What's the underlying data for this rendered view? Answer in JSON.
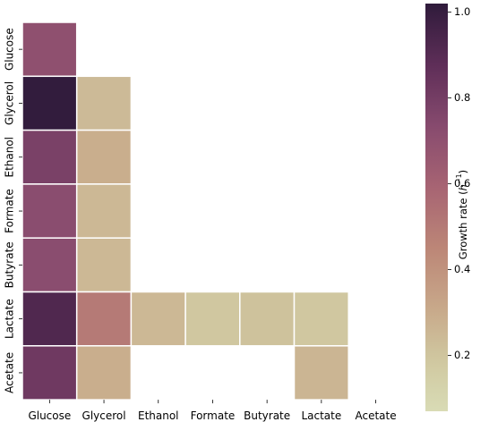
{
  "chart_data": {
    "type": "heatmap",
    "title": "",
    "xlabel": "",
    "ylabel": "",
    "x_categories": [
      "Glucose",
      "Glycerol",
      "Ethanol",
      "Formate",
      "Butyrate",
      "Lactate",
      "Acetate"
    ],
    "y_categories": [
      "Glucose",
      "Glycerol",
      "Ethanol",
      "Formate",
      "Butyrate",
      "Lactate",
      "Acetate"
    ],
    "values": [
      [
        0.7,
        null,
        null,
        null,
        null,
        null,
        null
      ],
      [
        1.01,
        0.24,
        null,
        null,
        null,
        null,
        null
      ],
      [
        0.78,
        0.29,
        null,
        null,
        null,
        null,
        null
      ],
      [
        0.72,
        0.25,
        null,
        null,
        null,
        null,
        null
      ],
      [
        0.72,
        0.25,
        null,
        null,
        null,
        null,
        null
      ],
      [
        0.92,
        0.5,
        0.25,
        0.19,
        0.21,
        0.19,
        null
      ],
      [
        0.82,
        0.29,
        null,
        null,
        null,
        0.26,
        null
      ]
    ],
    "colorbar": {
      "label_prefix": "Growth rate (",
      "label_var": "h",
      "label_sup": "−1",
      "label_suffix": ")",
      "range": [
        0.07,
        1.02
      ],
      "ticks": [
        0.2,
        0.4,
        0.6,
        0.8,
        1.0
      ],
      "tick_labels": [
        "0.2",
        "0.4",
        "0.6",
        "0.8",
        "1.0"
      ],
      "colormap_stops": [
        {
          "v": 0.0,
          "color": "#d9dbb5"
        },
        {
          "v": 0.12,
          "color": "#d0c9a1"
        },
        {
          "v": 0.25,
          "color": "#c8a98a"
        },
        {
          "v": 0.4,
          "color": "#bc8677"
        },
        {
          "v": 0.55,
          "color": "#a76473"
        },
        {
          "v": 0.7,
          "color": "#874a6e"
        },
        {
          "v": 0.85,
          "color": "#5e2e58"
        },
        {
          "v": 1.0,
          "color": "#2f1b3b"
        }
      ]
    },
    "grid": false,
    "cell_border_color": "#ffffff"
  }
}
